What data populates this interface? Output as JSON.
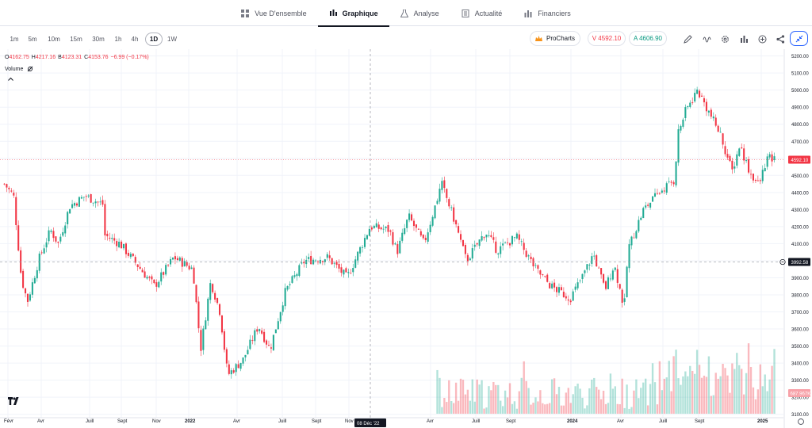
{
  "nav": {
    "tabs": [
      {
        "label": "Vue D'ensemble",
        "icon": "grid-icon"
      },
      {
        "label": "Graphique",
        "icon": "candles-icon",
        "active": true
      },
      {
        "label": "Analyse",
        "icon": "flask-icon"
      },
      {
        "label": "Actualité",
        "icon": "news-icon"
      },
      {
        "label": "Financiers",
        "icon": "bars-icon"
      }
    ]
  },
  "toolbar": {
    "timeframes": [
      "1m",
      "5m",
      "10m",
      "15m",
      "30m",
      "1h",
      "4h",
      "1D",
      "1W"
    ],
    "active_timeframe": "1D",
    "prochart_label": "ProCharts",
    "sell_label": "V 4592.10",
    "buy_label": "A 4606.90",
    "icons": [
      "pencil-icon",
      "indicators-icon",
      "settings-icon",
      "chart-type-icon",
      "add-icon",
      "share-icon",
      "collapse-fullscreen-icon"
    ]
  },
  "legend": {
    "o_key": "O",
    "o_val": "4162.75",
    "h_key": "H",
    "h_val": "4217.16",
    "b_key": "B",
    "b_val": "4123.31",
    "c_key": "C",
    "c_val": "4153.76",
    "change": "−6.99 (−0.17%)",
    "volume_label": "Volume",
    "volume_icon": "eye-off-icon"
  },
  "colors": {
    "up": "#22ab94",
    "down": "#f23645",
    "crosshair": "#9598a1",
    "last_price_bg": "#f23645"
  },
  "chart_data": {
    "type": "candlestick",
    "instrument_note": "",
    "price_axis": [
      "5200.00",
      "5100.00",
      "5000.00",
      "4900.00",
      "4800.00",
      "4700.00",
      "4600.00",
      "4500.00",
      "4400.00",
      "4300.00",
      "4200.00",
      "4100.00",
      "4000.00",
      "3900.00",
      "3800.00",
      "3700.00",
      "3600.00",
      "3500.00",
      "3400.00",
      "3300.00",
      "3200.00",
      "3100.00"
    ],
    "ylim": [
      3080,
      5240
    ],
    "time_axis": [
      "Févr",
      "Avr",
      "Juill",
      "Sept",
      "Nov",
      "2022",
      "Avr",
      "Juill",
      "Sept",
      "Nov",
      "Avr",
      "Juill",
      "Sept",
      "2024",
      "Avr",
      "Juill",
      "Sept",
      "2025"
    ],
    "time_axis_bold": [
      "2022",
      "2024",
      "2025"
    ],
    "crosshair_date_label": "08 Déc '22",
    "crosshair_price_label": "3992.58",
    "last_price_label": "4592.10",
    "last_volume_label": "687.967K",
    "price_path": [
      {
        "t": 0.0,
        "p": 4450
      },
      {
        "t": 0.012,
        "p": 4380
      },
      {
        "t": 0.022,
        "p": 3900
      },
      {
        "t": 0.03,
        "p": 3760
      },
      {
        "t": 0.045,
        "p": 4010
      },
      {
        "t": 0.06,
        "p": 4180
      },
      {
        "t": 0.07,
        "p": 4100
      },
      {
        "t": 0.085,
        "p": 4320
      },
      {
        "t": 0.105,
        "p": 4380
      },
      {
        "t": 0.128,
        "p": 4330
      },
      {
        "t": 0.13,
        "p": 4150
      },
      {
        "t": 0.15,
        "p": 4100
      },
      {
        "t": 0.17,
        "p": 3990
      },
      {
        "t": 0.195,
        "p": 3850
      },
      {
        "t": 0.22,
        "p": 4020
      },
      {
        "t": 0.245,
        "p": 3950
      },
      {
        "t": 0.255,
        "p": 3480
      },
      {
        "t": 0.268,
        "p": 3880
      },
      {
        "t": 0.28,
        "p": 3700
      },
      {
        "t": 0.29,
        "p": 3330
      },
      {
        "t": 0.31,
        "p": 3420
      },
      {
        "t": 0.33,
        "p": 3620
      },
      {
        "t": 0.345,
        "p": 3480
      },
      {
        "t": 0.365,
        "p": 3820
      },
      {
        "t": 0.39,
        "p": 4000
      },
      {
        "t": 0.42,
        "p": 4020
      },
      {
        "t": 0.445,
        "p": 3900
      },
      {
        "t": 0.475,
        "p": 4200
      },
      {
        "t": 0.5,
        "p": 4180
      },
      {
        "t": 0.51,
        "p": 4050
      },
      {
        "t": 0.525,
        "p": 4260
      },
      {
        "t": 0.545,
        "p": 4100
      },
      {
        "t": 0.568,
        "p": 4450
      },
      {
        "t": 0.585,
        "p": 4230
      },
      {
        "t": 0.6,
        "p": 4000
      },
      {
        "t": 0.625,
        "p": 4170
      },
      {
        "t": 0.64,
        "p": 4060
      },
      {
        "t": 0.665,
        "p": 4140
      },
      {
        "t": 0.69,
        "p": 3950
      },
      {
        "t": 0.71,
        "p": 3850
      },
      {
        "t": 0.735,
        "p": 3780
      },
      {
        "t": 0.75,
        "p": 3900
      },
      {
        "t": 0.765,
        "p": 4040
      },
      {
        "t": 0.78,
        "p": 3830
      },
      {
        "t": 0.792,
        "p": 3980
      },
      {
        "t": 0.805,
        "p": 3720
      },
      {
        "t": 0.81,
        "p": 4070
      },
      {
        "t": 0.83,
        "p": 4300
      },
      {
        "t": 0.855,
        "p": 4420
      },
      {
        "t": 0.87,
        "p": 4470
      },
      {
        "t": 0.875,
        "p": 4750
      },
      {
        "t": 0.885,
        "p": 4880
      },
      {
        "t": 0.9,
        "p": 5000
      },
      {
        "t": 0.915,
        "p": 4870
      },
      {
        "t": 0.93,
        "p": 4740
      },
      {
        "t": 0.945,
        "p": 4520
      },
      {
        "t": 0.955,
        "p": 4680
      },
      {
        "t": 0.968,
        "p": 4520
      },
      {
        "t": 0.98,
        "p": 4440
      },
      {
        "t": 0.99,
        "p": 4600
      },
      {
        "t": 1.0,
        "p": 4592
      }
    ]
  }
}
